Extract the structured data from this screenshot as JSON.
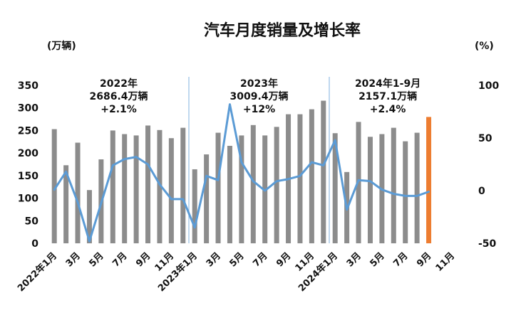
{
  "chart_data": {
    "type": "bar",
    "title": "汽车月度销量及增长率",
    "y_left_unit": "(万辆)",
    "y_right_unit": "(%)",
    "y_left_ticks": [
      "350",
      "300",
      "250",
      "200",
      "150",
      "100",
      "50",
      "0"
    ],
    "y_right_ticks": [
      "100",
      "50",
      "0",
      "-50"
    ],
    "ylim_left": [
      0,
      350
    ],
    "ylim_right": [
      -50,
      100
    ],
    "grid": false,
    "x_ticks": [
      {
        "label": "2022年1月",
        "index": 0
      },
      {
        "label": "3月",
        "index": 2
      },
      {
        "label": "5月",
        "index": 4
      },
      {
        "label": "7月",
        "index": 6
      },
      {
        "label": "9月",
        "index": 8
      },
      {
        "label": "11月",
        "index": 10
      },
      {
        "label": "2023年1月",
        "index": 12
      },
      {
        "label": "3月",
        "index": 14
      },
      {
        "label": "5月",
        "index": 16
      },
      {
        "label": "7月",
        "index": 18
      },
      {
        "label": "9月",
        "index": 20
      },
      {
        "label": "11月",
        "index": 22
      },
      {
        "label": "2024年1月",
        "index": 24
      },
      {
        "label": "3月",
        "index": 26
      },
      {
        "label": "5月",
        "index": 28
      },
      {
        "label": "7月",
        "index": 30
      },
      {
        "label": "9月",
        "index": 32
      },
      {
        "label": "11月",
        "index": 34
      }
    ],
    "months": 36,
    "series": [
      {
        "name": "",
        "kind": "bar",
        "axis": "left",
        "color": "#8c8c8c",
        "highlight": {
          "index": 32,
          "color": "#ed7d31"
        },
        "values": [
          253,
          173,
          223,
          118,
          186,
          250,
          242,
          239,
          261,
          251,
          233,
          256,
          164,
          197,
          245,
          216,
          239,
          262,
          239,
          258,
          286,
          286,
          297,
          316,
          244,
          158,
          269,
          236,
          242,
          256,
          226,
          245,
          280
        ]
      },
      {
        "name": "",
        "kind": "line",
        "axis": "right",
        "color": "#5b9bd5",
        "values": [
          1,
          18,
          -11,
          -48,
          -12,
          24,
          30,
          32,
          25,
          6,
          -8,
          -8,
          -35,
          14,
          10,
          82,
          27,
          9,
          0,
          9,
          11,
          14,
          27,
          24,
          48,
          -18,
          10,
          9,
          1,
          -3,
          -5,
          -5,
          -1
        ]
      }
    ],
    "dividers_after_index": [
      11,
      23
    ],
    "annotations": [
      {
        "lines": [
          "2022年",
          "2686.4万辆",
          "+2.1%"
        ],
        "center_index": 5.5
      },
      {
        "lines": [
          "2023年",
          "3009.4万辆",
          "+12%"
        ],
        "center_index": 17.5
      },
      {
        "lines": [
          "2024年1-9月",
          "2157.1万辆",
          "+2.4%"
        ],
        "center_index": 28.5
      }
    ]
  }
}
